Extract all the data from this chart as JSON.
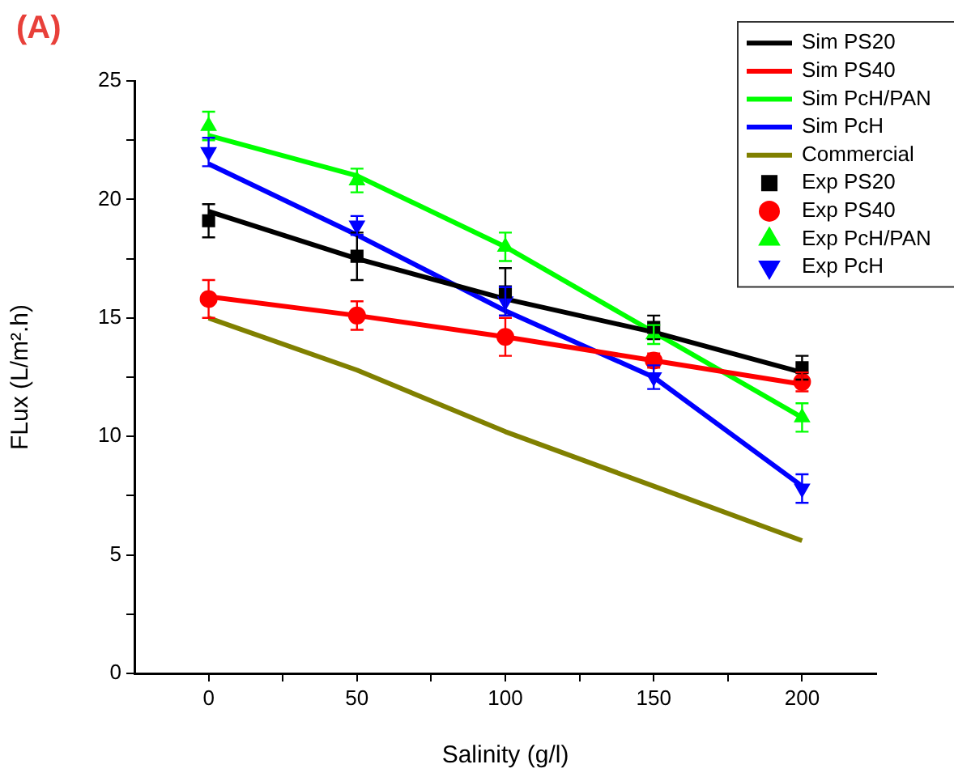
{
  "chart_data": {
    "type": "line",
    "title": "(A)",
    "xlabel": "Salinity (g/l)",
    "ylabel": "FLux (L/m².h)",
    "x": [
      0,
      50,
      100,
      150,
      200
    ],
    "xlim": [
      -25,
      225
    ],
    "xticks": [
      0,
      {
        "value": 25,
        "label": null
      },
      50,
      {
        "value": 75,
        "label": null
      },
      100,
      {
        "value": 125,
        "label": null
      },
      150,
      {
        "value": 175,
        "label": null
      },
      200
    ],
    "ylim": [
      0,
      25
    ],
    "yticks": [
      0,
      {
        "value": 2.5,
        "label": null
      },
      5,
      {
        "value": 7.5,
        "label": null
      },
      10,
      {
        "value": 12.5,
        "label": null
      },
      15,
      {
        "value": 17.5,
        "label": null
      },
      20,
      {
        "value": 22.5,
        "label": null
      },
      25
    ],
    "grid": false,
    "legend": "top right",
    "marker": "none",
    "line_style": "solid",
    "series": [
      {
        "name": "Sim PS20",
        "color": "#000000",
        "values": [
          19.5,
          17.5,
          15.8,
          14.4,
          12.7
        ]
      },
      {
        "name": "Sim PS40",
        "color": "#ff0000",
        "values": [
          15.9,
          15.1,
          14.2,
          13.2,
          12.2
        ]
      },
      {
        "name": "Sim PcH/PAN",
        "color": "#00ff00",
        "values": [
          22.7,
          21.0,
          18.0,
          14.4,
          10.8
        ]
      },
      {
        "name": "Sim PcH",
        "color": "#0000ff",
        "values": [
          21.5,
          18.5,
          15.3,
          12.5,
          7.9
        ]
      },
      {
        "name": "Commercial",
        "color": "#808000",
        "values": [
          15.0,
          12.8,
          10.2,
          7.9,
          5.6
        ]
      },
      {
        "name": "Exp PS20",
        "type": "scatter",
        "marker": "square",
        "color": "#000000",
        "values": [
          19.1,
          17.6,
          16.1,
          14.6,
          12.9
        ],
        "errors": [
          0.7,
          1.0,
          1.0,
          0.5,
          0.5
        ]
      },
      {
        "name": "Exp PS40",
        "type": "scatter",
        "marker": "circle",
        "color": "#ff0000",
        "values": [
          15.8,
          15.1,
          14.2,
          13.2,
          12.3
        ],
        "errors": [
          0.8,
          0.6,
          0.8,
          0.3,
          0.4
        ]
      },
      {
        "name": "Exp PcH/PAN",
        "type": "scatter",
        "marker": "triangle",
        "color": "#00ff00",
        "values": [
          23.1,
          20.8,
          18.0,
          14.3,
          10.8
        ],
        "errors": [
          0.6,
          0.5,
          0.6,
          0.4,
          0.6
        ]
      },
      {
        "name": "Exp PcH",
        "type": "scatter",
        "marker": "triangle_down",
        "color": "#0000ff",
        "values": [
          22.0,
          18.9,
          15.7,
          12.5,
          7.8
        ],
        "errors": [
          0.6,
          0.4,
          0.6,
          0.5,
          0.6
        ]
      }
    ]
  }
}
